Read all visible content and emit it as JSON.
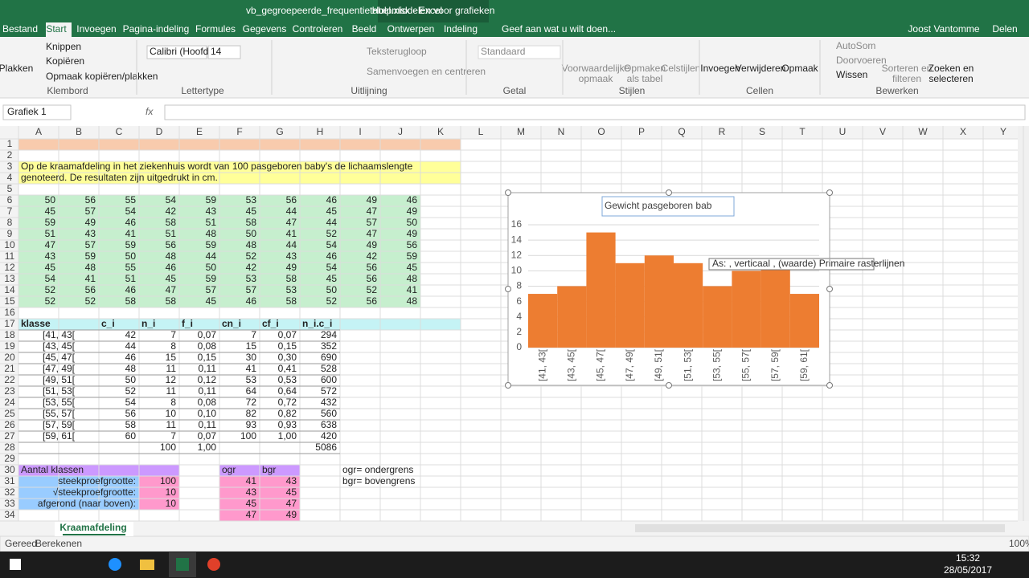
{
  "title_bar": {
    "file": "vb_gegroepeerde_frequentietabel.xlsx - Excel",
    "context": "Hulpmiddelen voor grafieken"
  },
  "tabs": [
    "Bestand",
    "Start",
    "Invoegen",
    "Pagina-indeling",
    "Formules",
    "Gegevens",
    "Controleren",
    "Beeld",
    "Ontwerpen",
    "Indeling"
  ],
  "tell_me": "Geef aan wat u wilt doen...",
  "user": "Joost Vantomme",
  "share": "Delen",
  "ribbon": {
    "clipboard": {
      "label": "Klembord",
      "items": [
        "Plakken",
        "Knippen",
        "Kopiëren",
        "Opmaak kopiëren/plakken"
      ]
    },
    "font": {
      "label": "Lettertype",
      "items": [
        "Calibri (Hoofd",
        "14"
      ]
    },
    "alignment": {
      "label": "Uitlijning",
      "items": [
        "Teksterugloop",
        "Samenvoegen en centreren"
      ]
    },
    "number": {
      "label": "Getal",
      "items": [
        "Standaard"
      ]
    },
    "styles": {
      "label": "Stijlen",
      "items": [
        "Voorwaardelijke",
        "opmaak",
        "Opmaken",
        "als tabel",
        "Celstijlen"
      ]
    },
    "cells": {
      "label": "Cellen",
      "items": [
        "Invoegen",
        "Verwijderen",
        "Opmaak"
      ]
    },
    "editing": {
      "label": "Bewerken",
      "items": [
        "AutoSom",
        "Doorvoeren",
        "Wissen",
        "Sorteren en",
        "filteren",
        "Zoeken en",
        "selecteren"
      ]
    }
  },
  "name_box": "Grafiek 1",
  "formula_icon": "fx",
  "sheet": {
    "columns": [
      "A",
      "B",
      "C",
      "D",
      "E",
      "F",
      "G",
      "H",
      "I",
      "J",
      "K",
      "L",
      "M",
      "N",
      "O",
      "P",
      "Q",
      "R",
      "S",
      "T",
      "U",
      "V",
      "W",
      "X",
      "Y"
    ],
    "row_numbers": [
      1,
      2,
      3,
      4,
      5,
      6,
      7,
      8,
      9,
      10,
      11,
      12,
      13,
      14,
      15,
      16,
      17,
      18,
      19,
      20,
      21,
      22,
      23,
      24,
      25,
      26,
      27,
      28,
      29,
      30,
      31,
      32,
      33,
      34
    ],
    "intro": [
      "Op de kraamafdeling in het ziekenhuis wordt van 100 pasgeboren baby's de lichaamslengte",
      "genoteerd. De resultaten zijn uitgedrukt in cm."
    ],
    "data": [
      [
        50,
        56,
        55,
        54,
        59,
        53,
        56,
        46,
        49,
        46
      ],
      [
        45,
        57,
        54,
        42,
        43,
        45,
        44,
        45,
        47,
        49
      ],
      [
        59,
        49,
        46,
        58,
        51,
        58,
        47,
        44,
        57,
        50
      ],
      [
        51,
        43,
        41,
        51,
        48,
        50,
        41,
        52,
        47,
        49
      ],
      [
        47,
        57,
        59,
        56,
        59,
        48,
        44,
        54,
        49,
        56
      ],
      [
        43,
        59,
        50,
        48,
        44,
        52,
        43,
        46,
        42,
        59
      ],
      [
        45,
        48,
        55,
        46,
        50,
        42,
        49,
        54,
        56,
        45
      ],
      [
        54,
        41,
        51,
        45,
        59,
        53,
        58,
        45,
        56,
        48
      ],
      [
        52,
        56,
        46,
        47,
        57,
        57,
        53,
        50,
        52,
        41
      ],
      [
        52,
        52,
        58,
        58,
        45,
        46,
        58,
        52,
        56,
        48
      ]
    ],
    "table": {
      "header": [
        "klasse",
        "c_i",
        "n_i",
        "f_i",
        "cn_i",
        "cf_i",
        "n_i.c_i"
      ],
      "rows": [
        [
          "[41, 43[",
          42,
          7,
          "0,07",
          7,
          "0,07",
          294
        ],
        [
          "[43, 45[",
          44,
          8,
          "0,08",
          15,
          "0,15",
          352
        ],
        [
          "[45, 47[",
          46,
          15,
          "0,15",
          30,
          "0,30",
          690
        ],
        [
          "[47, 49[",
          48,
          11,
          "0,11",
          41,
          "0,41",
          528
        ],
        [
          "[49, 51[",
          50,
          12,
          "0,12",
          53,
          "0,53",
          600
        ],
        [
          "[51, 53[",
          52,
          11,
          "0,11",
          64,
          "0,64",
          572
        ],
        [
          "[53, 55[",
          54,
          8,
          "0,08",
          72,
          "0,72",
          432
        ],
        [
          "[55, 57[",
          56,
          10,
          "0,10",
          82,
          "0,82",
          560
        ],
        [
          "[57, 59[",
          58,
          11,
          "0,11",
          93,
          "0,93",
          638
        ],
        [
          "[59, 61[",
          60,
          7,
          "0,07",
          100,
          "1,00",
          420
        ]
      ],
      "totals": [
        100,
        "1,00",
        5086
      ]
    },
    "summary": {
      "header": "Aantal klassen",
      "rows": [
        [
          "steekproefgrootte:",
          100
        ],
        [
          "√steekproefgrootte:",
          10
        ],
        [
          "afgerond (naar boven):",
          10
        ]
      ]
    },
    "bounds": {
      "header": [
        "ogr",
        "bgr"
      ],
      "rows": [
        [
          41,
          43
        ],
        [
          43,
          45
        ],
        [
          45,
          47
        ],
        [
          47,
          49
        ]
      ]
    },
    "notes": [
      "ogr= ondergrens",
      "bgr= bovengrens"
    ],
    "tab": "Kraamafdeling"
  },
  "chart_data": {
    "type": "bar",
    "title": "Gewicht pasgeboren bab",
    "categories": [
      "[41, 43[",
      "[43, 45[",
      "[45, 47[",
      "[47, 49[",
      "[49, 51[",
      "[51, 53[",
      "[53, 55[",
      "[55, 57[",
      "[57, 59[",
      "[59, 61["
    ],
    "values": [
      7,
      8,
      15,
      11,
      12,
      11,
      8,
      10,
      11,
      7
    ],
    "color": "#ed7d31",
    "ylim": [
      0,
      16
    ],
    "yticks": [
      0,
      2,
      4,
      6,
      8,
      10,
      12,
      14,
      16
    ],
    "grid": true,
    "tooltip": "As: , verticaal , (waarde)  Primaire rasterlijnen"
  },
  "status": {
    "ready": "Gereed",
    "calc": "Berekenen",
    "zoom": "100%"
  },
  "taskbar": {
    "time": "15:32",
    "date": "28/05/2017"
  }
}
